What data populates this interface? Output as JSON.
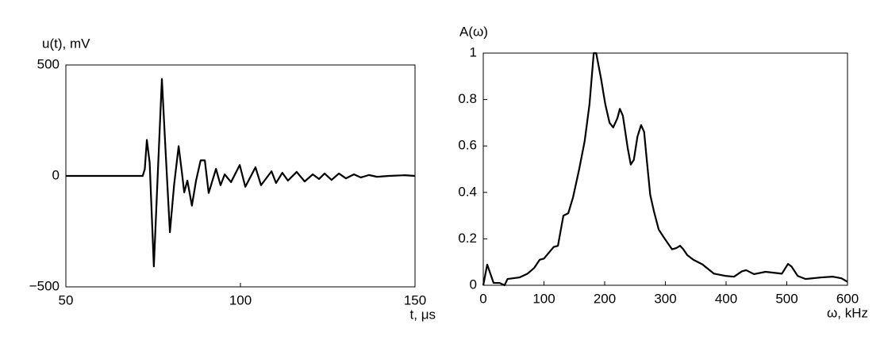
{
  "chart_data": [
    {
      "type": "line",
      "ylabel": "u(t), mV",
      "xlabel": "t, μs",
      "color": "#000000",
      "x": [
        50,
        72,
        72.6,
        73.2,
        74,
        75.2,
        76.3,
        77.5,
        78.6,
        79.8,
        81,
        82.3,
        83.2,
        83.9,
        84.8,
        86.1,
        87.3,
        88.6,
        89.8,
        90.9,
        93,
        94.3,
        95.5,
        97.3,
        99.8,
        101.4,
        104.3,
        105.9,
        108.9,
        110.2,
        112,
        113.6,
        116.1,
        118.4,
        120.7,
        122.5,
        124.1,
        126.1,
        128.2,
        130.2,
        132.5,
        134.5,
        136.8,
        139.1,
        142.5,
        147,
        150
      ],
      "values": [
        0,
        0,
        30,
        162,
        60,
        -408,
        0,
        437,
        100,
        -254,
        -40,
        134,
        20,
        -74,
        -21,
        -134,
        -20,
        70,
        70,
        -77,
        32,
        -42,
        7,
        -28,
        49,
        -49,
        39,
        -42,
        21,
        -32,
        14,
        -21,
        18,
        -25,
        7,
        -14,
        11,
        -18,
        11,
        -11,
        7,
        -7,
        4,
        -4,
        0,
        3,
        0
      ],
      "xlim": [
        50,
        150
      ],
      "ylim": [
        -500,
        500
      ],
      "xticks": [
        50,
        100,
        150
      ],
      "yticks": [
        {
          "value": -500,
          "label": "−500"
        },
        0,
        500
      ]
    },
    {
      "type": "line",
      "ylabel": "A(ω)",
      "xlabel": "ω, kHz",
      "color": "#000000",
      "x": [
        0,
        6.5,
        17,
        27,
        35,
        40,
        60,
        73,
        84,
        93,
        100,
        108,
        116,
        123,
        132,
        140,
        148,
        158,
        167,
        175,
        182,
        186,
        194,
        201,
        208,
        214,
        221,
        225,
        230,
        238,
        243,
        248,
        254,
        260,
        265,
        269,
        275,
        281,
        289,
        299,
        311,
        318,
        324,
        329,
        336,
        346,
        361,
        380,
        400,
        413,
        426,
        433,
        446,
        465,
        492,
        502,
        508,
        518,
        531,
        557,
        576,
        590,
        600
      ],
      "values": [
        0,
        0.089,
        0.01,
        0.01,
        0,
        0.027,
        0.034,
        0.05,
        0.075,
        0.11,
        0.115,
        0.14,
        0.165,
        0.17,
        0.3,
        0.31,
        0.38,
        0.5,
        0.62,
        0.78,
        1.0,
        1.0,
        0.89,
        0.78,
        0.7,
        0.68,
        0.72,
        0.76,
        0.73,
        0.59,
        0.52,
        0.54,
        0.64,
        0.69,
        0.66,
        0.55,
        0.39,
        0.32,
        0.24,
        0.2,
        0.155,
        0.16,
        0.17,
        0.157,
        0.13,
        0.11,
        0.09,
        0.05,
        0.04,
        0.037,
        0.06,
        0.065,
        0.048,
        0.058,
        0.05,
        0.092,
        0.08,
        0.04,
        0.027,
        0.034,
        0.037,
        0.03,
        0.015
      ],
      "xlim": [
        0,
        600
      ],
      "ylim": [
        0,
        1
      ],
      "xticks": [
        0,
        100,
        200,
        300,
        400,
        500,
        600
      ],
      "yticks": [
        0,
        0.2,
        0.4,
        0.6,
        0.8,
        1
      ]
    }
  ]
}
